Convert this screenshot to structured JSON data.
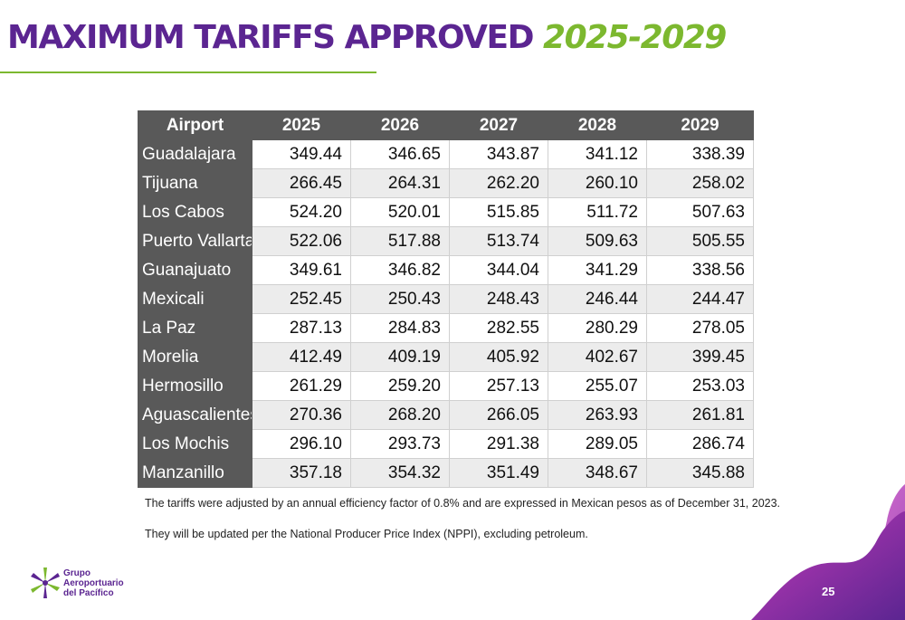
{
  "title": {
    "part1": "MAXIMUM TARIFFS APPROVED",
    "part2": "2025-2029"
  },
  "table": {
    "headers": [
      "Airport",
      "2025",
      "2026",
      "2027",
      "2028",
      "2029"
    ],
    "rows": [
      {
        "airport": "Guadalajara",
        "values": [
          "349.44",
          "346.65",
          "343.87",
          "341.12",
          "338.39"
        ]
      },
      {
        "airport": "Tijuana",
        "values": [
          "266.45",
          "264.31",
          "262.20",
          "260.10",
          "258.02"
        ]
      },
      {
        "airport": "Los Cabos",
        "values": [
          "524.20",
          "520.01",
          "515.85",
          "511.72",
          "507.63"
        ]
      },
      {
        "airport": "Puerto Vallarta",
        "values": [
          "522.06",
          "517.88",
          "513.74",
          "509.63",
          "505.55"
        ]
      },
      {
        "airport": "Guanajuato",
        "values": [
          "349.61",
          "346.82",
          "344.04",
          "341.29",
          "338.56"
        ]
      },
      {
        "airport": "Mexicali",
        "values": [
          "252.45",
          "250.43",
          "248.43",
          "246.44",
          "244.47"
        ]
      },
      {
        "airport": "La Paz",
        "values": [
          "287.13",
          "284.83",
          "282.55",
          "280.29",
          "278.05"
        ]
      },
      {
        "airport": "Morelia",
        "values": [
          "412.49",
          "409.19",
          "405.92",
          "402.67",
          "399.45"
        ]
      },
      {
        "airport": "Hermosillo",
        "values": [
          "261.29",
          "259.20",
          "257.13",
          "255.07",
          "253.03"
        ]
      },
      {
        "airport": "Aguascalientes",
        "values": [
          "270.36",
          "268.20",
          "266.05",
          "263.93",
          "261.81"
        ]
      },
      {
        "airport": "Los Mochis",
        "values": [
          "296.10",
          "293.73",
          "291.38",
          "289.05",
          "286.74"
        ]
      },
      {
        "airport": "Manzanillo",
        "values": [
          "357.18",
          "354.32",
          "351.49",
          "348.67",
          "345.88"
        ]
      }
    ]
  },
  "notes": [
    "The tariffs were adjusted by an annual efficiency factor of 0.8% and are expressed in Mexican pesos as of December 31, 2023.",
    "They will be updated per the National Producer Price Index (NPPI), excluding petroleum."
  ],
  "logo": {
    "line1": "Grupo",
    "line2": "Aeroportuario",
    "line3": "del Pacífico"
  },
  "page_number": "25",
  "colors": {
    "title_purple": "#5b2591",
    "title_green": "#7cb82f",
    "header_gray": "#595959",
    "row_alt": "#ececec"
  }
}
